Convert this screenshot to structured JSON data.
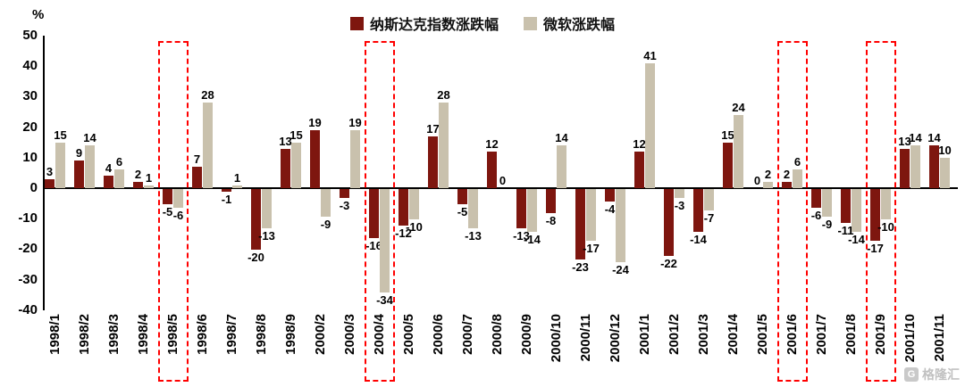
{
  "chart_data": {
    "type": "bar",
    "title": "",
    "xlabel": "",
    "ylabel": "%",
    "ylim": [
      -40,
      50
    ],
    "yticks": [
      50,
      40,
      30,
      20,
      10,
      0,
      -10,
      -20,
      -30,
      -40
    ],
    "grid": false,
    "legend_position": "top-center",
    "categories": [
      "1998/1",
      "1998/2",
      "1998/3",
      "1998/4",
      "1998/5",
      "1998/6",
      "1998/7",
      "1998/8",
      "1998/9",
      "2000/2",
      "2000/3",
      "2000/4",
      "2000/5",
      "2000/6",
      "2000/7",
      "2000/8",
      "2000/9",
      "2000/10",
      "2000/11",
      "2000/12",
      "2001/1",
      "2001/2",
      "2001/3",
      "2001/4",
      "2001/5",
      "2001/6",
      "2001/7",
      "2001/8",
      "2001/9",
      "2001/10",
      "2001/11"
    ],
    "series": [
      {
        "name": "纳斯达克指数涨跌幅",
        "color": "#7E160F",
        "values": [
          3,
          9,
          4,
          2,
          -5,
          7,
          -1,
          -20,
          13,
          19,
          -3,
          -16,
          -12,
          17,
          -5,
          12,
          -13,
          -8,
          -23,
          -4,
          12,
          -22,
          -14,
          15,
          0,
          2,
          -6,
          -11,
          -17,
          13,
          14
        ]
      },
      {
        "name": "微软涨跌幅",
        "color": "#C9C1AD",
        "values": [
          15,
          14,
          6,
          1,
          -6,
          28,
          1,
          -13,
          15,
          -9,
          19,
          -34,
          -10,
          28,
          -13,
          0,
          -14,
          14,
          -17,
          -24,
          41,
          -3,
          -7,
          24,
          2,
          6,
          -9,
          -14,
          -10,
          14,
          10
        ]
      }
    ],
    "highlighted_categories": [
      "1998/5",
      "2000/4",
      "2001/6",
      "2001/9"
    ],
    "highlight_color": "#FF0000"
  },
  "watermark": {
    "logo": "G",
    "text": "格隆汇"
  }
}
